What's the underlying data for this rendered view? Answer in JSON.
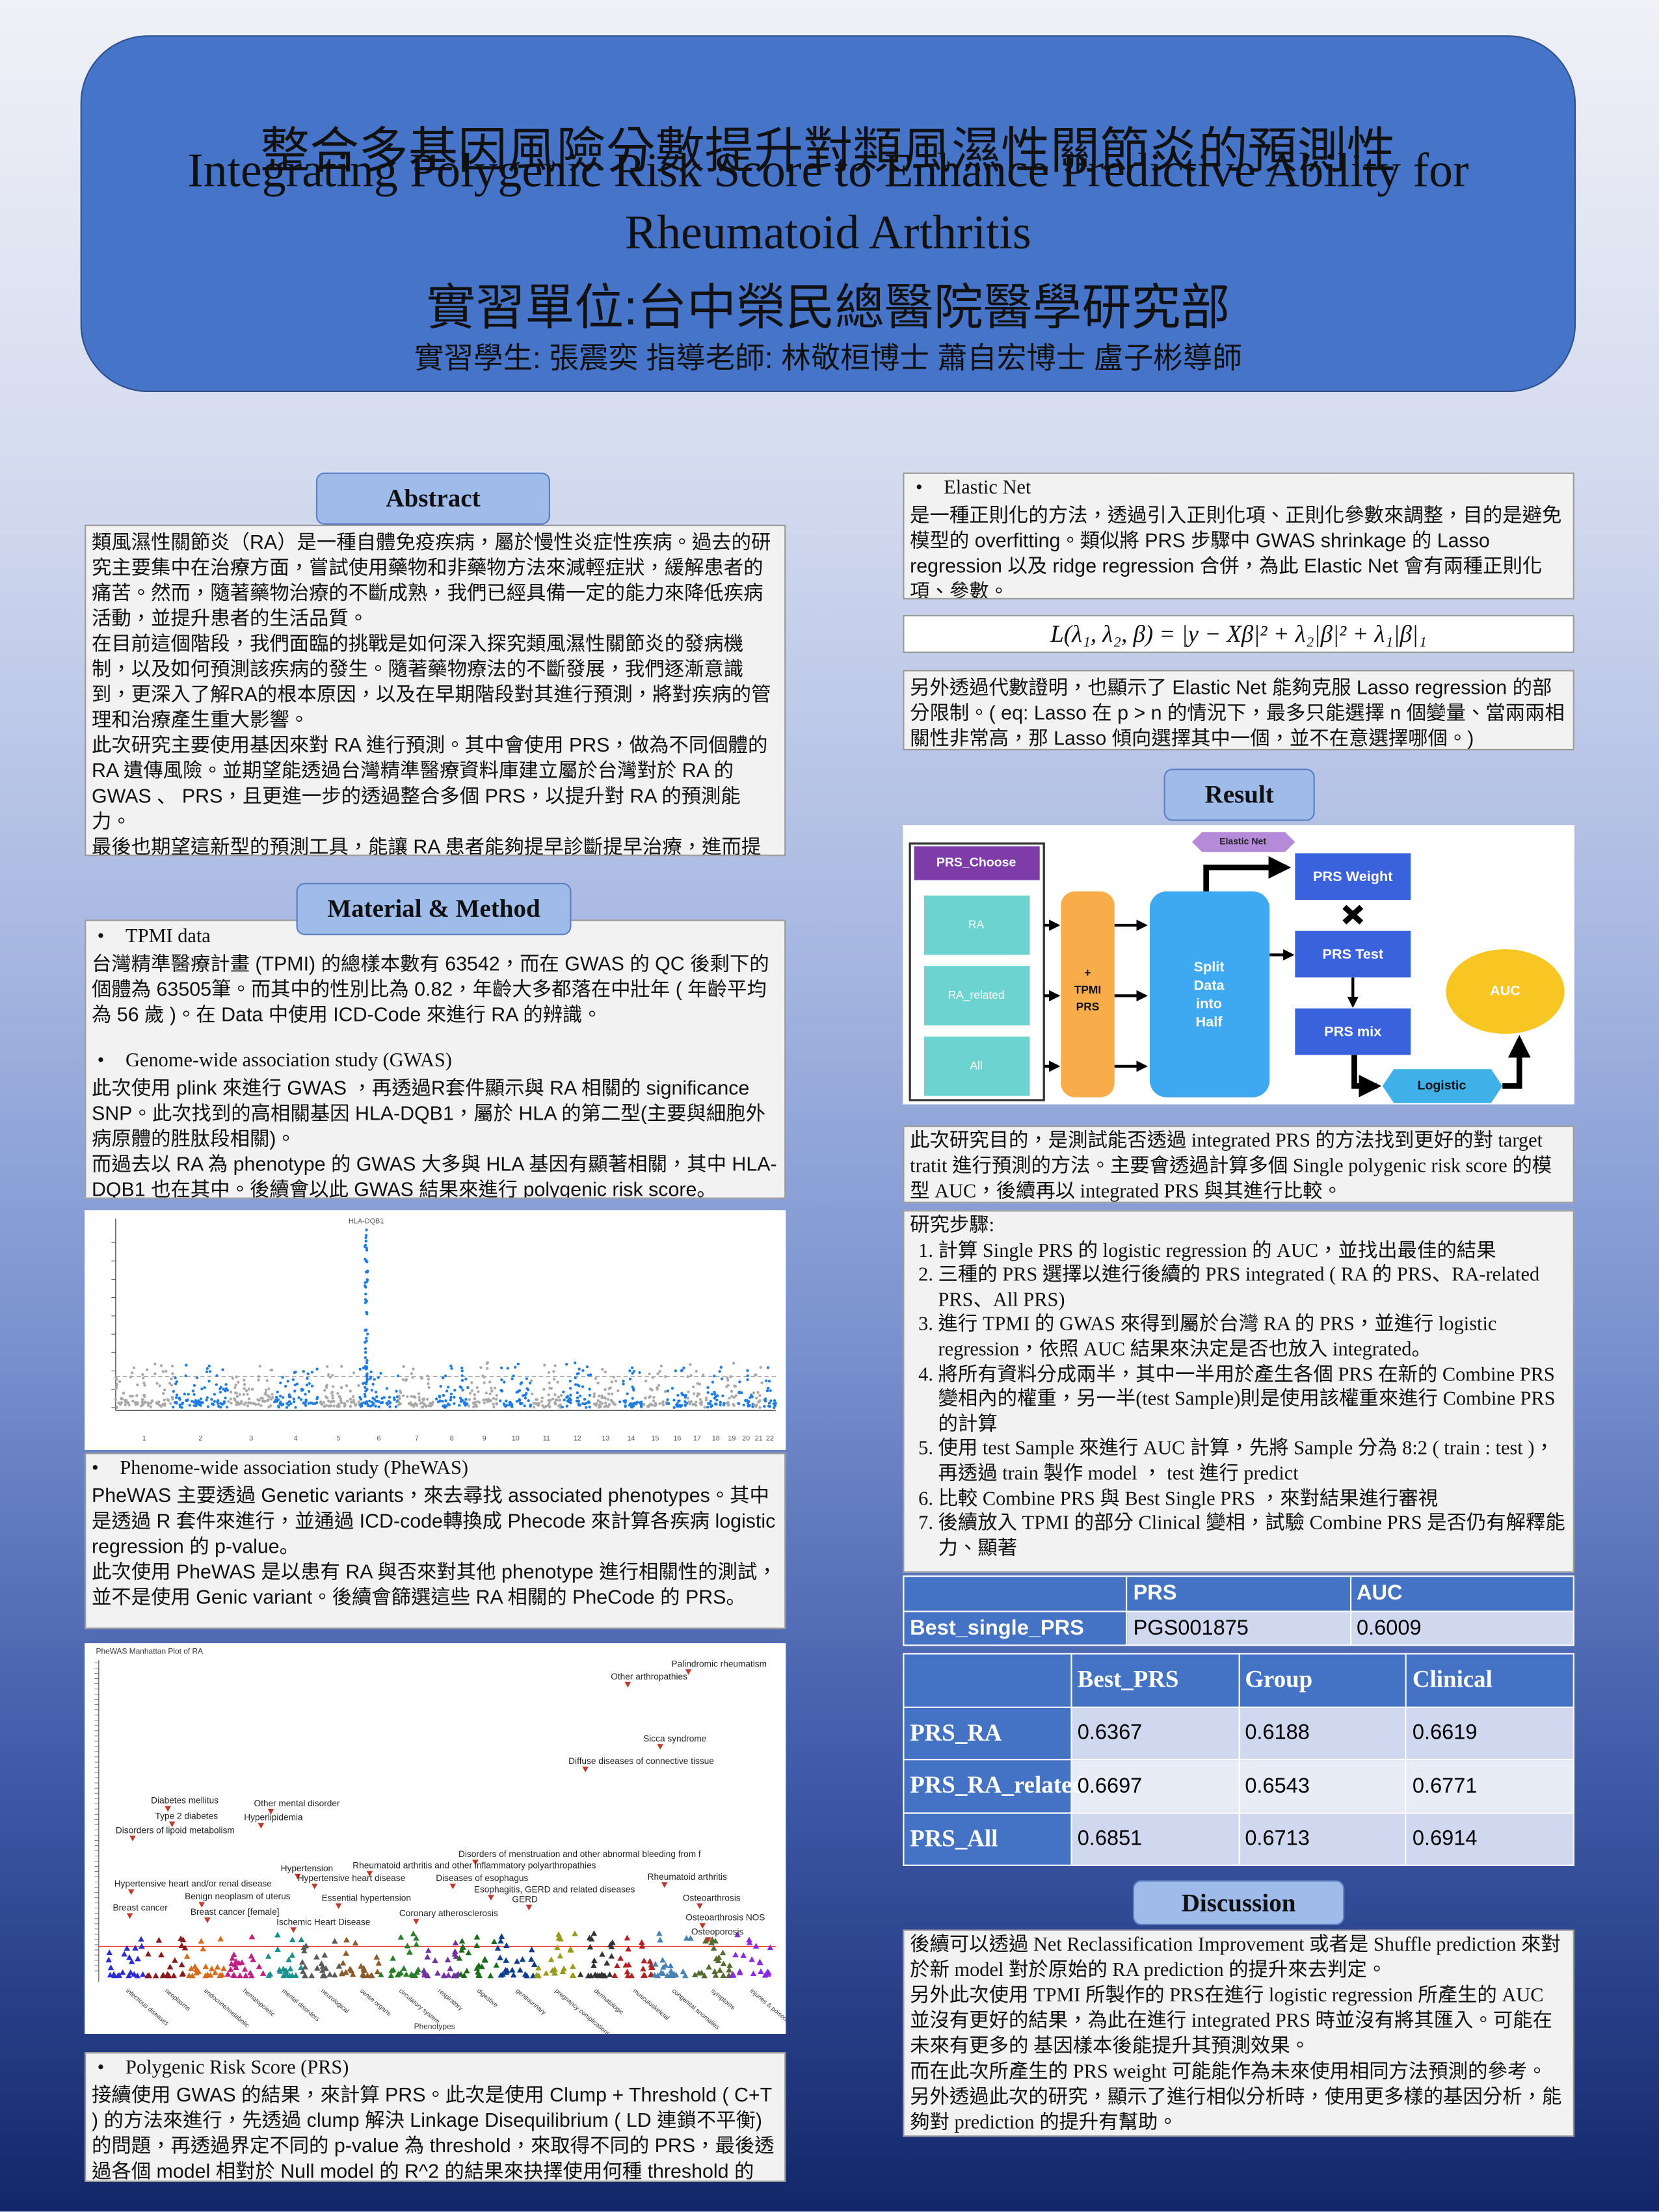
{
  "header": {
    "title_zh": "整合多基因風險分數提升對類風濕性關節炎的預測性",
    "title_en": "Integrating Polygenic Risk Score to Enhance Predictive Ability for Rheumatoid Arthritis",
    "unit": "實習單位:台中榮民總醫院醫學研究部",
    "authors": "實習學生: 張震奕 指導老師: 林敬桓博士 蕭自宏博士 盧子彬導師"
  },
  "abstract": {
    "heading": "Abstract",
    "paragraphs": [
      "類風濕性關節炎（RA）是一種自體免疫疾病，屬於慢性炎症性疾病。過去的研究主要集中在治療方面，嘗試使用藥物和非藥物方法來減輕症狀，緩解患者的痛苦。然而，隨著藥物治療的不斷成熟，我們已經具備一定的能力來降低疾病活動，並提升患者的生活品質。",
      "在目前這個階段，我們面臨的挑戰是如何深入探究類風濕性關節炎的發病機制，以及如何預測該疾病的發生。隨著藥物療法的不斷發展，我們逐漸意識到，更深入了解RA的根本原因，以及在早期階段對其進行預測，將對疾病的管理和治療產生重大影響。",
      "此次研究主要使用基因來對 RA 進行預測。其中會使用 PRS，做為不同個體的 RA 遺傳風險。並期望能透過台灣精準醫療資料庫建立屬於台灣對於 RA 的 GWAS 、 PRS，且更進一步的透過整合多個 PRS，以提升對 RA 的預測能力。",
      "最後也期望這新型的預測工具，能讓 RA 患者能夠提早診斷提早治療，進而提高臨床結果與生活質量。"
    ]
  },
  "methods": {
    "heading": "Material & Method",
    "tpmi": {
      "title": "TPMI data",
      "paragraphs": [
        "台灣精準醫療計畫 (TPMI) 的總樣本數有 63542，而在 GWAS 的 QC 後剩下的個體為 63505筆。而其中的性別比為 0.82，年齡大多都落在中壯年 ( 年齡平均為 56 歲 )。在 Data 中使用 ICD-Code 來進行 RA 的辨識。"
      ]
    },
    "gwas": {
      "title": "Genome-wide association study (GWAS)",
      "paragraphs": [
        "此次使用 plink 來進行 GWAS ，再透過R套件顯示與 RA 相關的 significance SNP。此次找到的高相關基因 HLA-DQB1，屬於 HLA 的第二型(主要與細胞外病原體的胜肽段相關)。",
        "而過去以 RA 為 phenotype 的 GWAS 大多與 HLA 基因有顯著相關，其中 HLA-DQB1 也在其中。後續會以此 GWAS 結果來進行 polygenic risk score。"
      ]
    },
    "gwas_plot": {
      "peak_label": "HLA-DQB1",
      "chromosomes": [
        1,
        2,
        3,
        4,
        5,
        6,
        7,
        8,
        9,
        10,
        11,
        12,
        13,
        14,
        15,
        16,
        17,
        18,
        19,
        20,
        21,
        22
      ]
    },
    "phewas": {
      "title": "Phenome-wide association study (PheWAS)",
      "paragraphs": [
        "PheWAS 主要透過 Genetic variants，來去尋找 associated phenotypes。其中是透過 R 套件來進行，並通過 ICD-code轉換成 Phecode 來計算各疾病 logistic regression 的 p-value。",
        "此次使用 PheWAS 是以患有 RA 與否來對其他 phenotype 進行相關性的測試，並不是使用 Genic variant。後續會篩選這些 RA 相關的 PheCode 的 PRS。"
      ]
    },
    "phewas_plot": {
      "title": "PheWAS Manhattan Plot of RA",
      "x_label": "Phenotypes",
      "categories": [
        "infectious diseases",
        "neoplasms",
        "endocrine/metabolic",
        "hematopoietic",
        "mental disorders",
        "neurological",
        "sense organs",
        "circulatory system",
        "respiratory",
        "digestive",
        "genitourinary",
        "pregnancy complications",
        "dermatologic",
        "musculoskeletal",
        "congenital anomalies",
        "symptoms",
        "injuries & poisonings"
      ],
      "annotations": [
        "Palindromic rheumatism",
        "Other arthropathies",
        "Sicca syndrome",
        "Diffuse diseases of connective tissue",
        "Diabetes mellitus",
        "Type 2 diabetes",
        "Other mental disorder",
        "Hyperlipidemia",
        "Disorders of lipoid metabolism",
        "Disorders of menstruation and other abnormal bleeding from f",
        "Hypertension",
        "Rheumatoid arthritis and other inflammatory polyarthropathies",
        "Rheumatoid arthritis",
        "Hypertensive heart disease",
        "Diseases of esophagus",
        "Hypertensive heart and/or renal disease",
        "Esophagitis, GERD and related diseases",
        "Essential hypertension",
        "Benign neoplasm of uterus",
        "GERD",
        "Osteoarthrosis",
        "Breast cancer",
        "Breast cancer [female]",
        "Coronary atherosclerosis",
        "Osteoarthrosis NOS",
        "Ischemic Heart Disease",
        "Osteoporosis"
      ]
    },
    "prs": {
      "title": "Polygenic Risk Score (PRS)",
      "paragraphs": [
        "接續使用 GWAS 的結果，來計算 PRS。此次是使用 Clump + Threshold ( C+T ) 的方法來進行，先透過 clump 解決 Linkage Disequilibrium ( LD 連鎖不平衡) 的問題，再透過界定不同的 p-value 為 threshold，來取得不同的 PRS，最後透過各個 model 相對於 Null model 的 R^2 的結果來抉擇使用何種 threshold 的 PRS。"
      ]
    }
  },
  "elastic_net": {
    "title": "Elastic Net",
    "paragraphs": [
      "是一種正則化的方法，透過引入正則化項、正則化參數來調整，目的是避免模型的 overfitting。類似將 PRS 步驟中 GWAS shrinkage 的 Lasso regression 以及 ridge regression 合併，為此 Elastic Net 會有兩種正則化項、參數。"
    ],
    "formula": "L(λ₁, λ₂, β) = |y − Xβ|² + λ₂|β|² + λ₁|β|₁",
    "note": "另外透過代數證明，也顯示了 Elastic Net 能夠克服 Lasso regression 的部分限制。( eq: Lasso 在 p > n 的情況下，最多只能選擇 n 個變量、當兩兩相關性非常高，那 Lasso 傾向選擇其中一個，並不在意選擇哪個。)"
  },
  "result": {
    "heading": "Result",
    "flowchart": {
      "prs_choose": "PRS_Choose",
      "ra": "RA",
      "ra_related": "RA_related",
      "all": "All",
      "tpmi_prs": [
        "+",
        "TPMI",
        "PRS"
      ],
      "split": [
        "Split",
        "Data",
        "into",
        "Half"
      ],
      "elastic_net": "Elastic Net",
      "prs_weight": "PRS Weight",
      "prs_test": "PRS Test",
      "prs_mix": "PRS mix",
      "logistic": "Logistic",
      "auc": "AUC"
    },
    "purpose": "此次研究目的，是測試能否透過 integrated PRS 的方法找到更好的對 target  tratit 進行預測的方法。主要會透過計算多個 Single polygenic risk score 的模型 AUC，後續再以 integrated PRS 與其進行比較。",
    "steps": {
      "title": "研究步驟:",
      "items": [
        "計算 Single PRS 的 logistic regression 的 AUC，並找出最佳的結果",
        "三種的 PRS 選擇以進行後續的 PRS integrated ( RA 的 PRS、RA-related PRS、All PRS)",
        "進行 TPMI 的 GWAS 來得到屬於台灣 RA 的 PRS，並進行 logistic regression，依照 AUC 結果來決定是否也放入 integrated。",
        "將所有資料分成兩半，其中一半用於產生各個 PRS 在新的 Combine PRS 變相內的權重，另一半(test Sample)則是使用該權重來進行 Combine PRS 的計算",
        "使用 test Sample  來進行 AUC 計算，先將 Sample 分為 8:2 ( train : test )，再透過 train 製作 model ， test 進行 predict",
        "比較 Combine PRS 與 Best Single PRS ，來對結果進行審視",
        "後續放入 TPMI 的部分 Clinical 變相，試驗 Combine PRS 是否仍有解釋能力、顯著"
      ]
    },
    "table1": {
      "header": [
        "PRS",
        "AUC"
      ],
      "rows": [
        [
          "Best_single_PRS",
          "PGS001875",
          "0.6009"
        ]
      ]
    },
    "table2": {
      "header": [
        "Best_PRS",
        "Group",
        "Clinical"
      ],
      "rows": [
        [
          "PRS_RA",
          "0.6367",
          "0.6188",
          "0.6619"
        ],
        [
          "PRS_RA_related",
          "0.6697",
          "0.6543",
          "0.6771"
        ],
        [
          "PRS_All",
          "0.6851",
          "0.6713",
          "0.6914"
        ]
      ]
    }
  },
  "discussion": {
    "heading": "Discussion",
    "paragraphs": [
      "後續可以透過 Net Reclassification Improvement 或者是 Shuffle prediction 來對於新 model 對於原始的 RA prediction 的提升來去判定。",
      "另外此次使用 TPMI 所製作的 PRS在進行 logistic regression 所產生的 AUC 並沒有更好的結果，為此在進行 integrated PRS 時並沒有將其匯入。可能在未來有更多的 基因樣本後能提升其預測效果。",
      "而在此次所產生的  PRS weight 可能能作為未來使用相同方法預測的參考。",
      "另外透過此次的研究，顯示了進行相似分析時，使用更多樣的基因分析，能夠對 prediction 的提升有幫助。"
    ]
  }
}
